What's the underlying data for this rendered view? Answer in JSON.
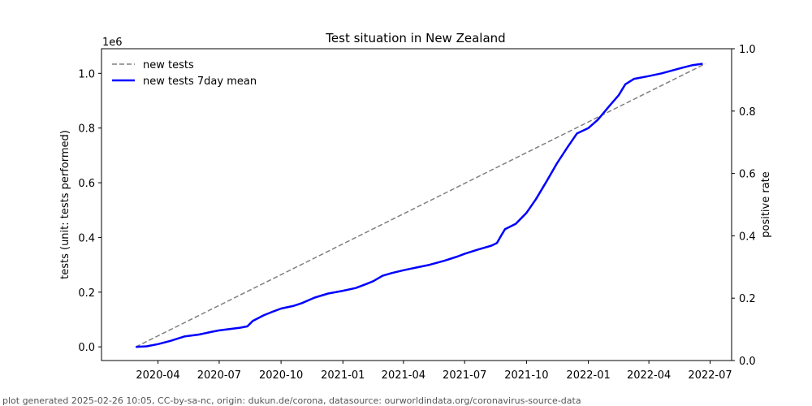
{
  "chart_data": {
    "type": "line",
    "title": "Test situation in New Zealand",
    "ylabel": "tests (unit: tests performed)",
    "y_offset_label": "1e6",
    "y2label": "positive rate",
    "ylim": [
      -0.05,
      1.09
    ],
    "y2lim": [
      0.0,
      1.0
    ],
    "y_ticks": [
      0.0,
      0.2,
      0.4,
      0.6,
      0.8,
      1.0
    ],
    "y_tick_labels": [
      "0.0",
      "0.2",
      "0.4",
      "0.6",
      "0.8",
      "1.0"
    ],
    "y2_ticks": [
      0.0,
      0.2,
      0.4,
      0.6,
      0.8,
      1.0
    ],
    "y2_tick_labels": [
      "0.0",
      "0.2",
      "0.4",
      "0.6",
      "0.8",
      "1.0"
    ],
    "xlim": [
      "2020-01-08",
      "2022-08-02"
    ],
    "x_ticks": [
      "2020-04-01",
      "2020-07-01",
      "2020-10-01",
      "2021-01-01",
      "2021-04-01",
      "2021-07-01",
      "2021-10-01",
      "2022-01-01",
      "2022-04-01",
      "2022-07-01"
    ],
    "x_tick_labels": [
      "2020-04",
      "2020-07",
      "2020-10",
      "2021-01",
      "2021-04",
      "2021-07",
      "2021-10",
      "2022-01",
      "2022-04",
      "2022-07"
    ],
    "legend_position": "top-left",
    "grid": false,
    "series": [
      {
        "name": "new tests",
        "style": "dashed",
        "color": "#808080",
        "x": [
          "2020-02-28",
          "2022-06-24"
        ],
        "y": [
          0.0,
          1.035
        ]
      },
      {
        "name": "new tests 7day mean",
        "style": "solid",
        "color": "#0000ff",
        "x": [
          "2020-02-28",
          "2020-03-15",
          "2020-04-01",
          "2020-04-20",
          "2020-05-10",
          "2020-06-01",
          "2020-06-20",
          "2020-07-01",
          "2020-08-01",
          "2020-08-12",
          "2020-08-20",
          "2020-09-05",
          "2020-09-20",
          "2020-10-01",
          "2020-10-20",
          "2020-11-01",
          "2020-11-20",
          "2020-12-10",
          "2021-01-01",
          "2021-01-20",
          "2021-02-05",
          "2021-02-15",
          "2021-03-01",
          "2021-03-15",
          "2021-04-01",
          "2021-04-20",
          "2021-05-10",
          "2021-06-01",
          "2021-06-20",
          "2021-07-01",
          "2021-07-20",
          "2021-08-10",
          "2021-08-18",
          "2021-08-25",
          "2021-08-30",
          "2021-09-15",
          "2021-10-01",
          "2021-10-15",
          "2021-11-01",
          "2021-11-15",
          "2021-12-01",
          "2021-12-15",
          "2022-01-01",
          "2022-01-15",
          "2022-02-01",
          "2022-02-15",
          "2022-02-25",
          "2022-03-10",
          "2022-04-01",
          "2022-04-20",
          "2022-05-05",
          "2022-05-20",
          "2022-06-05",
          "2022-06-20"
        ],
        "y": [
          0.0,
          0.002,
          0.01,
          0.022,
          0.038,
          0.045,
          0.055,
          0.06,
          0.07,
          0.075,
          0.095,
          0.115,
          0.13,
          0.14,
          0.15,
          0.16,
          0.18,
          0.195,
          0.205,
          0.215,
          0.23,
          0.24,
          0.26,
          0.27,
          0.28,
          0.29,
          0.3,
          0.315,
          0.33,
          0.34,
          0.355,
          0.37,
          0.38,
          0.41,
          0.43,
          0.45,
          0.49,
          0.54,
          0.61,
          0.67,
          0.73,
          0.78,
          0.8,
          0.83,
          0.88,
          0.92,
          0.96,
          0.98,
          0.99,
          1.0,
          1.01,
          1.02,
          1.03,
          1.035
        ]
      }
    ],
    "footer": "plot generated 2025-02-26 10:05, CC-by-sa-nc, origin: dukun.de/corona, datasource: ourworldindata.org/coronavirus-source-data"
  }
}
